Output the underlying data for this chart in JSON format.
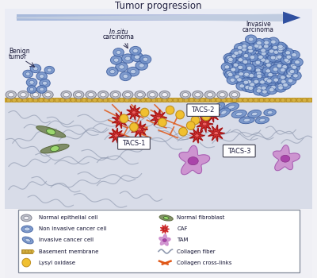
{
  "title": "Tumor progression",
  "bg_upper": "#e8ecf4",
  "bg_stroma": "#d4d8e4",
  "basement_color": "#c8a030",
  "arrow_light": "#c0cce0",
  "arrow_dark": "#3050a0",
  "labels": {
    "benign": [
      "Benign",
      "tumor"
    ],
    "insitu_italic": "In situ",
    "insitu_normal": "carcinoma",
    "invasive": [
      "Invasive",
      "carcinoma"
    ],
    "tacs1": "TACS-1",
    "tacs2": "TACS-2",
    "tacs3": "TACS-3"
  },
  "legend_items_left": [
    "Normal epithelial cell",
    "Non invasive cancer cell",
    "Invasive cancer cell",
    "Basement membrane",
    "Lysyl oxidase"
  ],
  "legend_items_right": [
    "Normal fibroblast",
    "CAF",
    "TAM",
    "Collagen fiber",
    "Collagen cross-links"
  ],
  "epithelial_face": "#c0c4cc",
  "epithelial_edge": "#808090",
  "cancer_face": "#7090c8",
  "cancer_edge": "#4060a0",
  "cancer_nucleus": "#c0d0e8",
  "caf_color": "#cc2020",
  "caf_edge": "#881010",
  "tam_face": "#cc88cc",
  "tam_nucleus": "#aa44aa",
  "fibroblast_face": "#708050",
  "fibroblast_nucleus": "#a0e070",
  "collagen_color": "#909ab0",
  "crosslink_color": "#e05818",
  "lysyl_face": "#f0c030",
  "lysyl_edge": "#c09020"
}
